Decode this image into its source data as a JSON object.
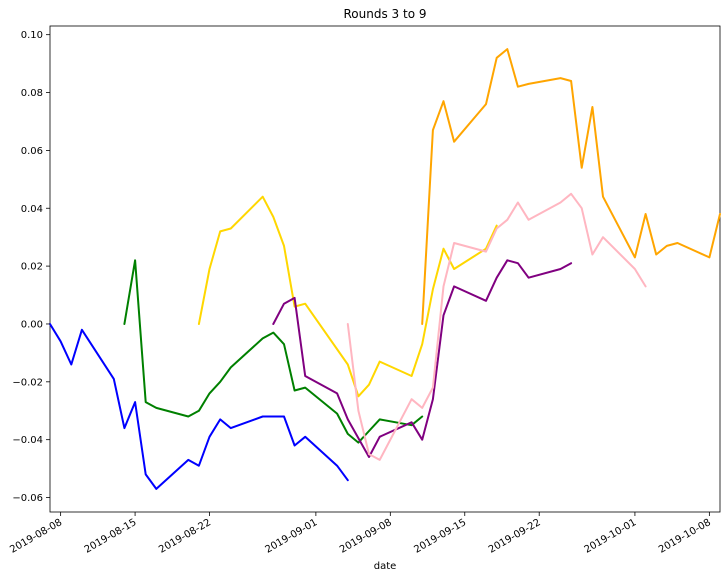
{
  "chart_data": {
    "type": "line",
    "title": "Rounds 3 to 9",
    "xlabel": "date",
    "ylabel": "",
    "xlim": [
      "2019-08-07",
      "2019-10-09"
    ],
    "ylim": [
      -0.065,
      0.103
    ],
    "grid": false,
    "legend": "none",
    "x_ticks": [
      "2019-08-08",
      "2019-08-15",
      "2019-08-22",
      "2019-09-01",
      "2019-09-08",
      "2019-09-15",
      "2019-09-22",
      "2019-10-01",
      "2019-10-08"
    ],
    "y_ticks": [
      -0.06,
      -0.04,
      -0.02,
      0.0,
      0.02,
      0.04,
      0.06,
      0.08,
      0.1
    ],
    "y_tick_labels": [
      "−0.06",
      "−0.04",
      "−0.02",
      "0.00",
      "0.02",
      "0.04",
      "0.06",
      "0.08",
      "0.10"
    ],
    "series": [
      {
        "color": "#0000ff",
        "points": [
          [
            "2019-08-07",
            0.0
          ],
          [
            "2019-08-08",
            -0.006
          ],
          [
            "2019-08-09",
            -0.014
          ],
          [
            "2019-08-10",
            -0.002
          ],
          [
            "2019-08-13",
            -0.019
          ],
          [
            "2019-08-14",
            -0.036
          ],
          [
            "2019-08-15",
            -0.027
          ],
          [
            "2019-08-16",
            -0.052
          ],
          [
            "2019-08-17",
            -0.057
          ],
          [
            "2019-08-20",
            -0.047
          ],
          [
            "2019-08-21",
            -0.049
          ],
          [
            "2019-08-22",
            -0.039
          ],
          [
            "2019-08-23",
            -0.033
          ],
          [
            "2019-08-24",
            -0.036
          ],
          [
            "2019-08-27",
            -0.032
          ],
          [
            "2019-08-29",
            -0.032
          ],
          [
            "2019-08-30",
            -0.042
          ],
          [
            "2019-08-31",
            -0.039
          ],
          [
            "2019-09-03",
            -0.049
          ],
          [
            "2019-09-04",
            -0.054
          ]
        ]
      },
      {
        "color": "#008000",
        "points": [
          [
            "2019-08-14",
            0.0
          ],
          [
            "2019-08-15",
            0.022
          ],
          [
            "2019-08-16",
            -0.027
          ],
          [
            "2019-08-17",
            -0.029
          ],
          [
            "2019-08-20",
            -0.032
          ],
          [
            "2019-08-21",
            -0.03
          ],
          [
            "2019-08-22",
            -0.024
          ],
          [
            "2019-08-23",
            -0.02
          ],
          [
            "2019-08-24",
            -0.015
          ],
          [
            "2019-08-27",
            -0.005
          ],
          [
            "2019-08-28",
            -0.003
          ],
          [
            "2019-08-29",
            -0.007
          ],
          [
            "2019-08-30",
            -0.023
          ],
          [
            "2019-08-31",
            -0.022
          ],
          [
            "2019-09-03",
            -0.031
          ],
          [
            "2019-09-04",
            -0.038
          ],
          [
            "2019-09-05",
            -0.041
          ],
          [
            "2019-09-06",
            -0.037
          ],
          [
            "2019-09-07",
            -0.033
          ],
          [
            "2019-09-10",
            -0.035
          ],
          [
            "2019-09-11",
            -0.032
          ]
        ]
      },
      {
        "color": "#ffd700",
        "points": [
          [
            "2019-08-21",
            0.0
          ],
          [
            "2019-08-22",
            0.019
          ],
          [
            "2019-08-23",
            0.032
          ],
          [
            "2019-08-24",
            0.033
          ],
          [
            "2019-08-27",
            0.044
          ],
          [
            "2019-08-28",
            0.037
          ],
          [
            "2019-08-29",
            0.027
          ],
          [
            "2019-08-30",
            0.006
          ],
          [
            "2019-08-31",
            0.007
          ],
          [
            "2019-09-04",
            -0.014
          ],
          [
            "2019-09-05",
            -0.025
          ],
          [
            "2019-09-06",
            -0.021
          ],
          [
            "2019-09-07",
            -0.013
          ],
          [
            "2019-09-10",
            -0.018
          ],
          [
            "2019-09-11",
            -0.007
          ],
          [
            "2019-09-12",
            0.012
          ],
          [
            "2019-09-13",
            0.026
          ],
          [
            "2019-09-14",
            0.019
          ],
          [
            "2019-09-17",
            0.026
          ],
          [
            "2019-09-18",
            0.034
          ]
        ]
      },
      {
        "color": "#800080",
        "points": [
          [
            "2019-08-28",
            0.0
          ],
          [
            "2019-08-29",
            0.007
          ],
          [
            "2019-08-30",
            0.009
          ],
          [
            "2019-08-31",
            -0.018
          ],
          [
            "2019-09-03",
            -0.024
          ],
          [
            "2019-09-04",
            -0.033
          ],
          [
            "2019-09-06",
            -0.046
          ],
          [
            "2019-09-07",
            -0.039
          ],
          [
            "2019-09-10",
            -0.034
          ],
          [
            "2019-09-11",
            -0.04
          ],
          [
            "2019-09-12",
            -0.026
          ],
          [
            "2019-09-13",
            0.003
          ],
          [
            "2019-09-14",
            0.013
          ],
          [
            "2019-09-17",
            0.008
          ],
          [
            "2019-09-18",
            0.016
          ],
          [
            "2019-09-19",
            0.022
          ],
          [
            "2019-09-20",
            0.021
          ],
          [
            "2019-09-21",
            0.016
          ],
          [
            "2019-09-24",
            0.019
          ],
          [
            "2019-09-25",
            0.021
          ]
        ]
      },
      {
        "color": "#ffb6c1",
        "points": [
          [
            "2019-09-04",
            0.0
          ],
          [
            "2019-09-05",
            -0.03
          ],
          [
            "2019-09-06",
            -0.045
          ],
          [
            "2019-09-07",
            -0.047
          ],
          [
            "2019-09-10",
            -0.026
          ],
          [
            "2019-09-11",
            -0.029
          ],
          [
            "2019-09-12",
            -0.022
          ],
          [
            "2019-09-13",
            0.013
          ],
          [
            "2019-09-14",
            0.028
          ],
          [
            "2019-09-17",
            0.025
          ],
          [
            "2019-09-18",
            0.033
          ],
          [
            "2019-09-19",
            0.036
          ],
          [
            "2019-09-20",
            0.042
          ],
          [
            "2019-09-21",
            0.036
          ],
          [
            "2019-09-24",
            0.042
          ],
          [
            "2019-09-25",
            0.045
          ],
          [
            "2019-09-26",
            0.04
          ],
          [
            "2019-09-27",
            0.024
          ],
          [
            "2019-09-28",
            0.03
          ],
          [
            "2019-10-01",
            0.019
          ],
          [
            "2019-10-02",
            0.013
          ]
        ]
      },
      {
        "color": "#ffa500",
        "points": [
          [
            "2019-09-11",
            0.0
          ],
          [
            "2019-09-12",
            0.067
          ],
          [
            "2019-09-13",
            0.077
          ],
          [
            "2019-09-14",
            0.063
          ],
          [
            "2019-09-17",
            0.076
          ],
          [
            "2019-09-18",
            0.092
          ],
          [
            "2019-09-19",
            0.095
          ],
          [
            "2019-09-20",
            0.082
          ],
          [
            "2019-09-21",
            0.083
          ],
          [
            "2019-09-24",
            0.085
          ],
          [
            "2019-09-25",
            0.084
          ],
          [
            "2019-09-26",
            0.054
          ],
          [
            "2019-09-27",
            0.075
          ],
          [
            "2019-09-28",
            0.044
          ],
          [
            "2019-10-01",
            0.023
          ],
          [
            "2019-10-02",
            0.038
          ],
          [
            "2019-10-03",
            0.024
          ],
          [
            "2019-10-04",
            0.027
          ],
          [
            "2019-10-05",
            0.028
          ],
          [
            "2019-10-08",
            0.023
          ],
          [
            "2019-10-09",
            0.038
          ]
        ]
      }
    ]
  }
}
